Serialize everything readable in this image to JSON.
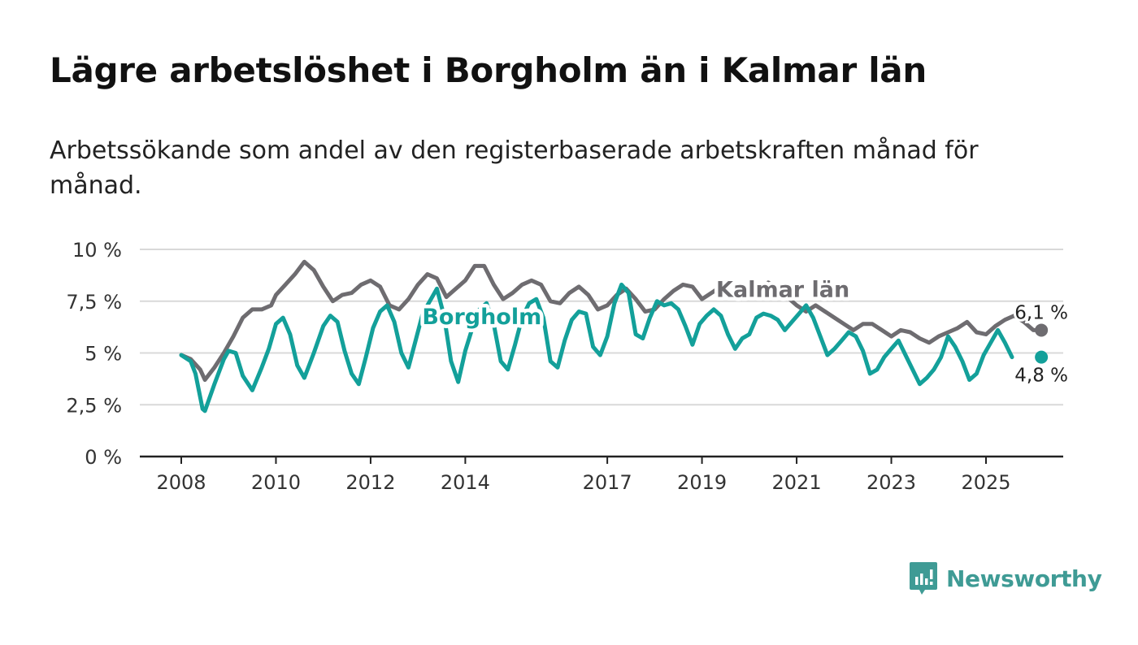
{
  "header": {
    "title": "Lägre arbetslöshet i Borgholm än i Kalmar län",
    "subtitle": "Arbetssökande som andel av den registerbaserade arbetskraften månad för månad."
  },
  "brand": {
    "name": "Newsworthy",
    "color": "#3f9b95"
  },
  "chart_data": {
    "type": "line",
    "title": "Lägre arbetslöshet i Borgholm än i Kalmar län",
    "xlabel": "",
    "ylabel": "",
    "xlim": [
      2008,
      2026.67
    ],
    "ylim": [
      0,
      10
    ],
    "grid": true,
    "x_ticks": [
      2008,
      2010,
      2012,
      2014,
      2017,
      2019,
      2021,
      2023,
      2025
    ],
    "x_tick_labels": [
      "2008",
      "2010",
      "2012",
      "2014",
      "2017",
      "2019",
      "2021",
      "2023",
      "2025"
    ],
    "y_ticks": [
      0,
      2.5,
      5,
      7.5,
      10
    ],
    "y_tick_labels": [
      "0 %",
      "2,5 %",
      "5 %",
      "7,5 %",
      "10 %"
    ],
    "series": [
      {
        "name": "Kalmar län",
        "color": "#6e6c70",
        "label_text": "Kalmar län",
        "end_label": "6,1 %",
        "points": [
          [
            2008.0,
            4.9
          ],
          [
            2008.2,
            4.7
          ],
          [
            2008.4,
            4.2
          ],
          [
            2008.5,
            3.7
          ],
          [
            2008.7,
            4.3
          ],
          [
            2008.9,
            5.0
          ],
          [
            2009.1,
            5.8
          ],
          [
            2009.3,
            6.7
          ],
          [
            2009.5,
            7.1
          ],
          [
            2009.7,
            7.1
          ],
          [
            2009.9,
            7.3
          ],
          [
            2010.0,
            7.8
          ],
          [
            2010.2,
            8.3
          ],
          [
            2010.4,
            8.8
          ],
          [
            2010.6,
            9.4
          ],
          [
            2010.8,
            9.0
          ],
          [
            2011.0,
            8.2
          ],
          [
            2011.2,
            7.5
          ],
          [
            2011.4,
            7.8
          ],
          [
            2011.6,
            7.9
          ],
          [
            2011.8,
            8.3
          ],
          [
            2012.0,
            8.5
          ],
          [
            2012.2,
            8.2
          ],
          [
            2012.4,
            7.3
          ],
          [
            2012.6,
            7.1
          ],
          [
            2012.8,
            7.6
          ],
          [
            2013.0,
            8.3
          ],
          [
            2013.2,
            8.8
          ],
          [
            2013.4,
            8.6
          ],
          [
            2013.6,
            7.7
          ],
          [
            2013.8,
            8.1
          ],
          [
            2014.0,
            8.5
          ],
          [
            2014.2,
            9.2
          ],
          [
            2014.4,
            9.2
          ],
          [
            2014.6,
            8.3
          ],
          [
            2014.8,
            7.6
          ],
          [
            2015.0,
            7.9
          ],
          [
            2015.2,
            8.3
          ],
          [
            2015.4,
            8.5
          ],
          [
            2015.6,
            8.3
          ],
          [
            2015.8,
            7.5
          ],
          [
            2016.0,
            7.4
          ],
          [
            2016.2,
            7.9
          ],
          [
            2016.4,
            8.2
          ],
          [
            2016.6,
            7.8
          ],
          [
            2016.8,
            7.1
          ],
          [
            2017.0,
            7.3
          ],
          [
            2017.2,
            7.8
          ],
          [
            2017.4,
            8.1
          ],
          [
            2017.6,
            7.6
          ],
          [
            2017.8,
            7.0
          ],
          [
            2018.0,
            7.1
          ],
          [
            2018.2,
            7.6
          ],
          [
            2018.4,
            8.0
          ],
          [
            2018.6,
            8.3
          ],
          [
            2018.8,
            8.2
          ],
          [
            2019.0,
            7.6
          ],
          [
            2019.2,
            7.9
          ],
          [
            2019.4,
            8.2
          ],
          [
            2019.6,
            8.5
          ],
          [
            2019.8,
            8.2
          ],
          [
            2020.0,
            7.7
          ],
          [
            2020.2,
            8.0
          ],
          [
            2020.4,
            8.4
          ],
          [
            2020.6,
            8.2
          ],
          [
            2020.8,
            7.7
          ],
          [
            2021.0,
            7.3
          ],
          [
            2021.2,
            7.0
          ],
          [
            2021.4,
            7.3
          ],
          [
            2021.6,
            7.0
          ],
          [
            2021.8,
            6.7
          ],
          [
            2022.0,
            6.4
          ],
          [
            2022.2,
            6.1
          ],
          [
            2022.4,
            6.4
          ],
          [
            2022.6,
            6.4
          ],
          [
            2022.8,
            6.1
          ],
          [
            2023.0,
            5.8
          ],
          [
            2023.2,
            6.1
          ],
          [
            2023.4,
            6.0
          ],
          [
            2023.6,
            5.7
          ],
          [
            2023.8,
            5.5
          ],
          [
            2024.0,
            5.8
          ],
          [
            2024.2,
            6.0
          ],
          [
            2024.4,
            6.2
          ],
          [
            2024.6,
            6.5
          ],
          [
            2024.8,
            6.0
          ],
          [
            2025.0,
            5.9
          ],
          [
            2025.2,
            6.3
          ],
          [
            2025.4,
            6.6
          ],
          [
            2025.6,
            6.8
          ],
          [
            2025.8,
            6.5
          ],
          [
            2026.0,
            6.1
          ],
          [
            2026.2,
            6.1
          ]
        ]
      },
      {
        "name": "Borgholm",
        "color": "#13a09a",
        "label_text": "Borgholm",
        "end_label": "4,8 %",
        "points": [
          [
            2008.0,
            4.9
          ],
          [
            2008.2,
            4.6
          ],
          [
            2008.3,
            4.0
          ],
          [
            2008.45,
            2.3
          ],
          [
            2008.5,
            2.2
          ],
          [
            2008.7,
            3.5
          ],
          [
            2008.9,
            4.7
          ],
          [
            2009.0,
            5.1
          ],
          [
            2009.15,
            5.0
          ],
          [
            2009.3,
            3.9
          ],
          [
            2009.5,
            3.2
          ],
          [
            2009.7,
            4.3
          ],
          [
            2009.85,
            5.2
          ],
          [
            2010.0,
            6.4
          ],
          [
            2010.15,
            6.7
          ],
          [
            2010.3,
            5.9
          ],
          [
            2010.45,
            4.4
          ],
          [
            2010.6,
            3.8
          ],
          [
            2010.8,
            5.0
          ],
          [
            2011.0,
            6.3
          ],
          [
            2011.15,
            6.8
          ],
          [
            2011.3,
            6.5
          ],
          [
            2011.45,
            5.1
          ],
          [
            2011.6,
            4.0
          ],
          [
            2011.75,
            3.5
          ],
          [
            2011.9,
            4.8
          ],
          [
            2012.05,
            6.2
          ],
          [
            2012.2,
            7.0
          ],
          [
            2012.35,
            7.3
          ],
          [
            2012.5,
            6.5
          ],
          [
            2012.65,
            5.0
          ],
          [
            2012.8,
            4.3
          ],
          [
            2012.95,
            5.6
          ],
          [
            2013.1,
            6.9
          ],
          [
            2013.25,
            7.5
          ],
          [
            2013.4,
            8.1
          ],
          [
            2013.55,
            6.8
          ],
          [
            2013.7,
            4.6
          ],
          [
            2013.85,
            3.6
          ],
          [
            2014.0,
            5.1
          ],
          [
            2014.15,
            6.2
          ],
          [
            2014.3,
            7.1
          ],
          [
            2014.45,
            7.4
          ],
          [
            2014.6,
            6.4
          ],
          [
            2014.75,
            4.6
          ],
          [
            2014.9,
            4.2
          ],
          [
            2015.05,
            5.4
          ],
          [
            2015.2,
            6.7
          ],
          [
            2015.35,
            7.4
          ],
          [
            2015.5,
            7.6
          ],
          [
            2015.65,
            6.7
          ],
          [
            2015.8,
            4.6
          ],
          [
            2015.95,
            4.3
          ],
          [
            2016.1,
            5.6
          ],
          [
            2016.25,
            6.6
          ],
          [
            2016.4,
            7.0
          ],
          [
            2016.55,
            6.9
          ],
          [
            2016.7,
            5.3
          ],
          [
            2016.85,
            4.9
          ],
          [
            2017.0,
            5.8
          ],
          [
            2017.15,
            7.4
          ],
          [
            2017.3,
            8.3
          ],
          [
            2017.45,
            7.9
          ],
          [
            2017.6,
            5.9
          ],
          [
            2017.75,
            5.7
          ],
          [
            2017.9,
            6.7
          ],
          [
            2018.05,
            7.5
          ],
          [
            2018.2,
            7.3
          ],
          [
            2018.35,
            7.4
          ],
          [
            2018.5,
            7.1
          ],
          [
            2018.65,
            6.3
          ],
          [
            2018.8,
            5.4
          ],
          [
            2018.95,
            6.4
          ],
          [
            2019.1,
            6.8
          ],
          [
            2019.25,
            7.1
          ],
          [
            2019.4,
            6.8
          ],
          [
            2019.55,
            5.9
          ],
          [
            2019.7,
            5.2
          ],
          [
            2019.85,
            5.7
          ],
          [
            2020.0,
            5.9
          ],
          [
            2020.15,
            6.7
          ],
          [
            2020.3,
            6.9
          ],
          [
            2020.45,
            6.8
          ],
          [
            2020.6,
            6.6
          ],
          [
            2020.75,
            6.1
          ],
          [
            2020.9,
            6.5
          ],
          [
            2021.05,
            6.9
          ],
          [
            2021.2,
            7.3
          ],
          [
            2021.35,
            6.7
          ],
          [
            2021.5,
            5.8
          ],
          [
            2021.65,
            4.9
          ],
          [
            2021.8,
            5.2
          ],
          [
            2021.95,
            5.6
          ],
          [
            2022.1,
            6.0
          ],
          [
            2022.25,
            5.8
          ],
          [
            2022.4,
            5.1
          ],
          [
            2022.55,
            4.0
          ],
          [
            2022.7,
            4.2
          ],
          [
            2022.85,
            4.8
          ],
          [
            2023.0,
            5.2
          ],
          [
            2023.15,
            5.6
          ],
          [
            2023.3,
            4.9
          ],
          [
            2023.45,
            4.2
          ],
          [
            2023.6,
            3.5
          ],
          [
            2023.75,
            3.8
          ],
          [
            2023.9,
            4.2
          ],
          [
            2024.05,
            4.8
          ],
          [
            2024.2,
            5.8
          ],
          [
            2024.35,
            5.3
          ],
          [
            2024.5,
            4.6
          ],
          [
            2024.65,
            3.7
          ],
          [
            2024.8,
            4.0
          ],
          [
            2024.95,
            4.9
          ],
          [
            2025.1,
            5.5
          ],
          [
            2025.25,
            6.1
          ],
          [
            2025.4,
            5.5
          ],
          [
            2025.55,
            4.8
          ]
        ]
      }
    ]
  }
}
